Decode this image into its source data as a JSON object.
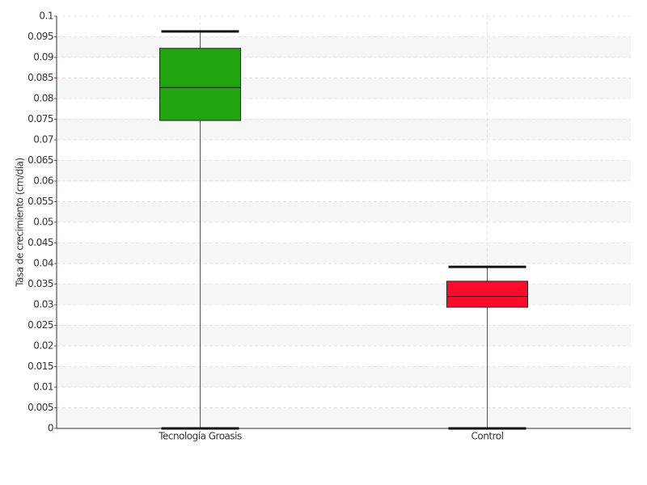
{
  "chart_data": {
    "type": "box",
    "y_label": "Tasa de crecimiento (cm/día)",
    "categories": [
      "Tecnología Groasis",
      "Control"
    ],
    "boxes": [
      {
        "min": 0,
        "q1": 0.0747,
        "median": 0.0827,
        "q3": 0.0922,
        "max": 0.0963,
        "color": "#22a511"
      },
      {
        "min": 0,
        "q1": 0.0294,
        "median": 0.032,
        "q3": 0.0357,
        "max": 0.0392,
        "color": "#ff0a2a"
      }
    ],
    "ylim": [
      0,
      0.1
    ],
    "yticks": [
      0,
      0.005,
      0.01,
      0.015,
      0.02,
      0.025,
      0.03,
      0.035,
      0.04,
      0.045,
      0.05,
      0.055,
      0.06,
      0.065,
      0.07,
      0.075,
      0.08,
      0.085,
      0.09,
      0.095,
      0.1
    ],
    "grid": true
  }
}
